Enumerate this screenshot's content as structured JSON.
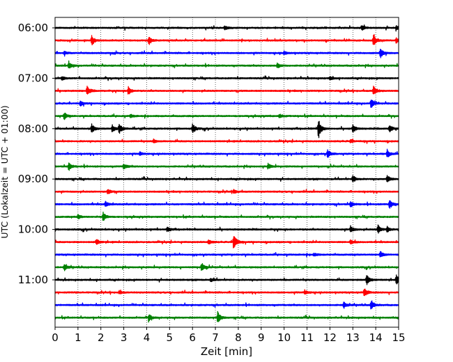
{
  "chart_data": {
    "type": "line",
    "title": "",
    "xlabel": "Zeit  [min]",
    "ylabel": "UTC (Lokalzeit = UTC + 01:00)",
    "xlim": [
      0,
      15
    ],
    "x_ticks": [
      "0",
      "1",
      "2",
      "3",
      "4",
      "5",
      "6",
      "7",
      "8",
      "9",
      "10",
      "11",
      "12",
      "13",
      "14",
      "15"
    ],
    "y_ticks": [
      {
        "label": "06:00",
        "row": 0
      },
      {
        "label": "07:00",
        "row": 4
      },
      {
        "label": "08:00",
        "row": 8
      },
      {
        "label": "09:00",
        "row": 12
      },
      {
        "label": "10:00",
        "row": 16
      },
      {
        "label": "11:00",
        "row": 20
      }
    ],
    "grid": "vertical-dotted",
    "trace_minutes": 15,
    "trace_colors": [
      "#000000",
      "#ff0000",
      "#0000ff",
      "#008000"
    ],
    "traces": [
      {
        "start": "06:00",
        "events": [
          [
            7.4,
            0.4
          ],
          [
            13.4,
            0.35
          ],
          [
            14.9,
            0.3
          ]
        ]
      },
      {
        "start": "06:15",
        "events": [
          [
            1.6,
            0.9
          ],
          [
            4.1,
            0.7
          ],
          [
            13.9,
            1.0
          ],
          [
            14.9,
            0.4
          ]
        ]
      },
      {
        "start": "06:30",
        "events": [
          [
            0.4,
            0.3
          ],
          [
            10.0,
            0.3
          ],
          [
            14.2,
            0.9
          ]
        ]
      },
      {
        "start": "06:45",
        "events": [
          [
            0.6,
            0.6
          ],
          [
            9.7,
            0.5
          ]
        ]
      },
      {
        "start": "07:00",
        "events": [
          [
            0.3,
            0.3
          ],
          [
            12.0,
            0.3
          ]
        ]
      },
      {
        "start": "07:15",
        "events": [
          [
            1.4,
            0.8
          ],
          [
            3.2,
            0.7
          ],
          [
            13.9,
            0.9
          ]
        ]
      },
      {
        "start": "07:30",
        "events": [
          [
            1.1,
            0.4
          ],
          [
            13.8,
            0.9
          ]
        ]
      },
      {
        "start": "07:45",
        "events": [
          [
            0.4,
            0.6
          ],
          [
            3.3,
            0.3
          ],
          [
            9.8,
            0.3
          ]
        ]
      },
      {
        "start": "08:00",
        "events": [
          [
            1.6,
            0.8
          ],
          [
            2.5,
            0.7
          ],
          [
            2.8,
            0.9
          ],
          [
            6.0,
            0.9
          ],
          [
            11.5,
            1.8
          ],
          [
            13.0,
            0.7
          ],
          [
            14.6,
            0.7
          ]
        ]
      },
      {
        "start": "08:15",
        "events": [
          [
            4.3,
            0.3
          ],
          [
            12.9,
            0.3
          ]
        ]
      },
      {
        "start": "08:30",
        "events": [
          [
            3.7,
            0.3
          ],
          [
            11.9,
            0.7
          ],
          [
            14.5,
            0.7
          ]
        ]
      },
      {
        "start": "08:45",
        "events": [
          [
            0.6,
            0.7
          ],
          [
            3.0,
            0.5
          ],
          [
            9.3,
            0.5
          ]
        ]
      },
      {
        "start": "09:00",
        "events": [
          [
            13.0,
            0.7
          ],
          [
            14.5,
            0.7
          ]
        ]
      },
      {
        "start": "09:15",
        "events": [
          [
            2.3,
            0.5
          ],
          [
            7.8,
            0.4
          ]
        ]
      },
      {
        "start": "09:30",
        "events": [
          [
            2.2,
            0.5
          ],
          [
            12.9,
            0.5
          ],
          [
            14.6,
            0.9
          ]
        ]
      },
      {
        "start": "09:45",
        "events": [
          [
            1.0,
            0.4
          ],
          [
            2.1,
            0.8
          ]
        ]
      },
      {
        "start": "10:00",
        "events": [
          [
            4.9,
            0.4
          ],
          [
            12.9,
            0.6
          ],
          [
            14.1,
            0.8
          ],
          [
            14.5,
            0.5
          ]
        ]
      },
      {
        "start": "10:15",
        "events": [
          [
            1.8,
            0.5
          ],
          [
            6.7,
            0.4
          ],
          [
            7.8,
            1.6
          ],
          [
            12.9,
            0.4
          ]
        ]
      },
      {
        "start": "10:30",
        "events": [
          [
            11.3,
            0.3
          ],
          [
            14.2,
            0.6
          ]
        ]
      },
      {
        "start": "10:45",
        "events": [
          [
            0.4,
            0.6
          ],
          [
            6.4,
            0.8
          ]
        ]
      },
      {
        "start": "11:00",
        "events": [
          [
            6.8,
            0.3
          ],
          [
            13.6,
            1.0
          ],
          [
            14.9,
            0.8
          ]
        ]
      },
      {
        "start": "11:15",
        "events": [
          [
            2.8,
            0.3
          ],
          [
            10.9,
            0.4
          ],
          [
            13.5,
            0.8
          ]
        ]
      },
      {
        "start": "11:30",
        "events": [
          [
            12.6,
            0.6
          ],
          [
            13.8,
            0.9
          ]
        ]
      },
      {
        "start": "11:45",
        "events": [
          [
            4.1,
            0.6
          ],
          [
            7.1,
            1.1
          ]
        ]
      }
    ]
  }
}
